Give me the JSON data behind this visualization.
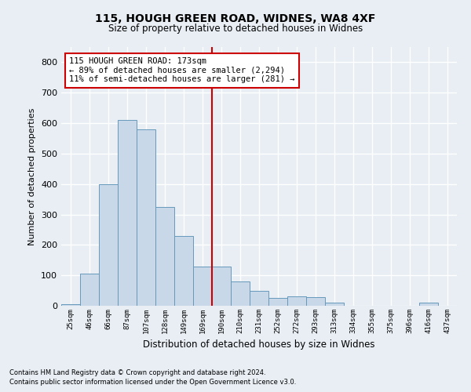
{
  "title1": "115, HOUGH GREEN ROAD, WIDNES, WA8 4XF",
  "title2": "Size of property relative to detached houses in Widnes",
  "xlabel": "Distribution of detached houses by size in Widnes",
  "ylabel": "Number of detached properties",
  "footnote1": "Contains HM Land Registry data © Crown copyright and database right 2024.",
  "footnote2": "Contains public sector information licensed under the Open Government Licence v3.0.",
  "bar_labels": [
    "25sqm",
    "46sqm",
    "66sqm",
    "87sqm",
    "107sqm",
    "128sqm",
    "149sqm",
    "169sqm",
    "190sqm",
    "210sqm",
    "231sqm",
    "252sqm",
    "272sqm",
    "293sqm",
    "313sqm",
    "334sqm",
    "355sqm",
    "375sqm",
    "396sqm",
    "416sqm",
    "437sqm"
  ],
  "bar_values": [
    5,
    105,
    400,
    610,
    580,
    325,
    230,
    130,
    130,
    80,
    50,
    25,
    30,
    28,
    10,
    0,
    0,
    0,
    0,
    10,
    0
  ],
  "bar_color": "#c8d8e8",
  "bar_edge_color": "#6699bb",
  "background_color": "#e8eef4",
  "grid_color": "#ffffff",
  "ylim": [
    0,
    850
  ],
  "yticks": [
    0,
    100,
    200,
    300,
    400,
    500,
    600,
    700,
    800
  ],
  "vline_x_index": 7.5,
  "vline_color": "#cc0000",
  "annotation_text": "115 HOUGH GREEN ROAD: 173sqm\n← 89% of detached houses are smaller (2,294)\n11% of semi-detached houses are larger (281) →",
  "annotation_box_color": "#ffffff",
  "annotation_box_edge_color": "#cc0000"
}
